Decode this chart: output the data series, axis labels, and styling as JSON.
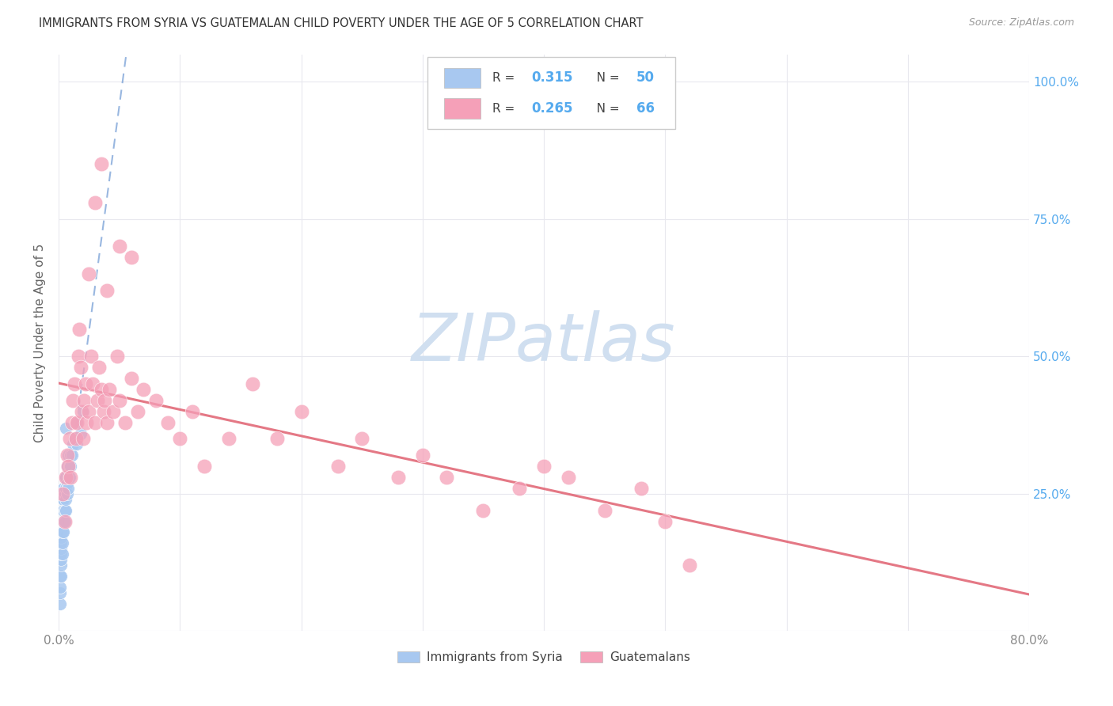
{
  "title": "IMMIGRANTS FROM SYRIA VS GUATEMALAN CHILD POVERTY UNDER THE AGE OF 5 CORRELATION CHART",
  "source": "Source: ZipAtlas.com",
  "ylabel": "Child Poverty Under the Age of 5",
  "xmin": 0.0,
  "xmax": 0.8,
  "ymin": 0.0,
  "ymax": 1.05,
  "legend_label1": "Immigrants from Syria",
  "legend_label2": "Guatemalans",
  "blue_color": "#a8c8f0",
  "pink_color": "#f5a0b8",
  "trendline_blue_color": "#5588cc",
  "trendline_pink_color": "#e06070",
  "watermark_text": "ZIPatlas",
  "watermark_color": "#d0dff0",
  "title_color": "#333333",
  "axis_label_color": "#666666",
  "tick_color_right": "#55aaee",
  "grid_color": "#e8e8ee",
  "syria_x": [
    0.001,
    0.001,
    0.001,
    0.001,
    0.002,
    0.002,
    0.002,
    0.002,
    0.002,
    0.002,
    0.002,
    0.002,
    0.003,
    0.003,
    0.003,
    0.003,
    0.003,
    0.003,
    0.003,
    0.004,
    0.004,
    0.004,
    0.004,
    0.004,
    0.005,
    0.005,
    0.005,
    0.005,
    0.006,
    0.006,
    0.006,
    0.006,
    0.007,
    0.007,
    0.007,
    0.008,
    0.008,
    0.008,
    0.009,
    0.009,
    0.01,
    0.01,
    0.011,
    0.012,
    0.013,
    0.015,
    0.015,
    0.018,
    0.02,
    0.006
  ],
  "syria_y": [
    0.05,
    0.07,
    0.08,
    0.1,
    0.1,
    0.12,
    0.13,
    0.14,
    0.15,
    0.16,
    0.17,
    0.18,
    0.14,
    0.16,
    0.18,
    0.2,
    0.22,
    0.24,
    0.25,
    0.18,
    0.2,
    0.22,
    0.24,
    0.26,
    0.2,
    0.22,
    0.25,
    0.28,
    0.22,
    0.24,
    0.26,
    0.28,
    0.25,
    0.27,
    0.3,
    0.26,
    0.28,
    0.32,
    0.28,
    0.3,
    0.3,
    0.32,
    0.32,
    0.34,
    0.35,
    0.34,
    0.38,
    0.36,
    0.4,
    0.37
  ],
  "guatemalan_x": [
    0.003,
    0.005,
    0.006,
    0.007,
    0.008,
    0.009,
    0.01,
    0.011,
    0.012,
    0.013,
    0.014,
    0.015,
    0.016,
    0.017,
    0.018,
    0.019,
    0.02,
    0.021,
    0.022,
    0.023,
    0.025,
    0.027,
    0.028,
    0.03,
    0.032,
    0.033,
    0.035,
    0.037,
    0.038,
    0.04,
    0.042,
    0.045,
    0.048,
    0.05,
    0.055,
    0.06,
    0.065,
    0.07,
    0.08,
    0.09,
    0.1,
    0.11,
    0.12,
    0.14,
    0.16,
    0.18,
    0.2,
    0.23,
    0.25,
    0.28,
    0.3,
    0.32,
    0.35,
    0.38,
    0.4,
    0.42,
    0.45,
    0.48,
    0.5,
    0.52,
    0.025,
    0.03,
    0.035,
    0.04,
    0.05,
    0.06
  ],
  "guatemalan_y": [
    0.25,
    0.2,
    0.28,
    0.32,
    0.3,
    0.35,
    0.28,
    0.38,
    0.42,
    0.45,
    0.35,
    0.38,
    0.5,
    0.55,
    0.48,
    0.4,
    0.35,
    0.42,
    0.45,
    0.38,
    0.4,
    0.5,
    0.45,
    0.38,
    0.42,
    0.48,
    0.44,
    0.4,
    0.42,
    0.38,
    0.44,
    0.4,
    0.5,
    0.42,
    0.38,
    0.46,
    0.4,
    0.44,
    0.42,
    0.38,
    0.35,
    0.4,
    0.3,
    0.35,
    0.45,
    0.35,
    0.4,
    0.3,
    0.35,
    0.28,
    0.32,
    0.28,
    0.22,
    0.26,
    0.3,
    0.28,
    0.22,
    0.26,
    0.2,
    0.12,
    0.65,
    0.78,
    0.85,
    0.62,
    0.7,
    0.68
  ],
  "r_syria": "0.315",
  "n_syria": "50",
  "r_guatemalan": "0.265",
  "n_guatemalan": "66"
}
